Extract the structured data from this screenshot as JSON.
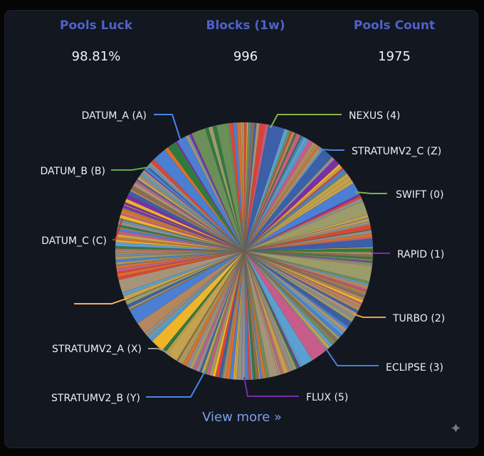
{
  "stats": {
    "luck": {
      "label": "Pools Luck",
      "value": "98.81%"
    },
    "blocks": {
      "label": "Blocks (1w)",
      "value": "996"
    },
    "count": {
      "label": "Pools Count",
      "value": "1975"
    }
  },
  "chart_data": {
    "type": "pie",
    "title": "",
    "labeled_slices": [
      {
        "label": "NEXUS (4)",
        "color": "#8fb04a"
      },
      {
        "label": "STRATUMV2_C (Z)",
        "color": "#4a86e8"
      },
      {
        "label": "SWIFT (0)",
        "color": "#7cb342"
      },
      {
        "label": "RAPID (1)",
        "color": "#7b2ea8"
      },
      {
        "label": "TURBO (2)",
        "color": "#f0a030"
      },
      {
        "label": "ECLIPSE (3)",
        "color": "#4a7fd4"
      },
      {
        "label": "FLUX (5)",
        "color": "#7b2ea8"
      },
      {
        "label": "STRATUMV2_B (Y)",
        "color": "#4a86e8"
      },
      {
        "label": "STRATUMV2_A (X)",
        "color": "#999999"
      },
      {
        "label": "",
        "color": "#f0b060"
      },
      {
        "label": "DATUM_C (C)",
        "color": "#c0392b"
      },
      {
        "label": "DATUM_B (B)",
        "color": "#6aa84f"
      },
      {
        "label": "DATUM_A (A)",
        "color": "#4a86e8"
      }
    ],
    "palette": [
      "#a6937a",
      "#8f8f8f",
      "#c4a24f",
      "#6b8f59",
      "#4a7fd4",
      "#e34234",
      "#f0b429",
      "#7b2ea8",
      "#2f7a3f",
      "#d9702b",
      "#9c9c6a",
      "#b5875f",
      "#5aa0d0",
      "#c75c8a",
      "#8a6d4f",
      "#3b5fa8"
    ]
  },
  "footer": {
    "view_more": "View more »",
    "sparkle_icon": "✦"
  }
}
